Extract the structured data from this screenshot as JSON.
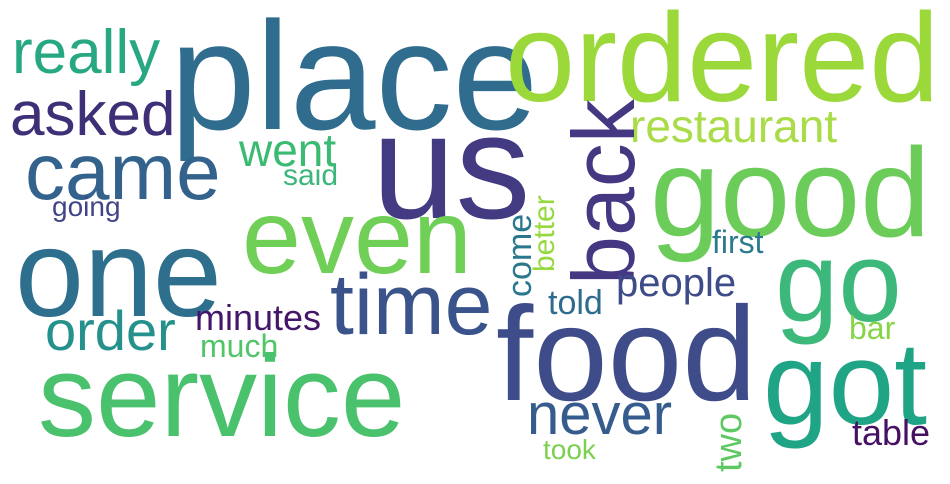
{
  "words": [
    {
      "key": "place",
      "text": "place",
      "color": "#2f6c8e"
    },
    {
      "key": "ordered",
      "text": "ordered",
      "color": "#9bd93b"
    },
    {
      "key": "really",
      "text": "really",
      "color": "#27a882"
    },
    {
      "key": "asked",
      "text": "asked",
      "color": "#3e2f77"
    },
    {
      "key": "us",
      "text": "us",
      "color": "#433b82"
    },
    {
      "key": "restaurant",
      "text": "restaurant",
      "color": "#a9dc48"
    },
    {
      "key": "came",
      "text": "came",
      "color": "#33628d"
    },
    {
      "key": "went",
      "text": "went",
      "color": "#3bba72"
    },
    {
      "key": "said",
      "text": "said",
      "color": "#3bb67b"
    },
    {
      "key": "good",
      "text": "good",
      "color": "#6ccc5a"
    },
    {
      "key": "going",
      "text": "going",
      "color": "#414487"
    },
    {
      "key": "even",
      "text": "even",
      "color": "#70cf57"
    },
    {
      "key": "one",
      "text": "one",
      "color": "#2e6f8e"
    },
    {
      "key": "back",
      "text": "back",
      "color": "#453781"
    },
    {
      "key": "better",
      "text": "better",
      "color": "#95d840"
    },
    {
      "key": "come",
      "text": "come",
      "color": "#2a788e"
    },
    {
      "key": "first",
      "text": "first",
      "color": "#2b7b8e"
    },
    {
      "key": "go",
      "text": "go",
      "color": "#3cb97a"
    },
    {
      "key": "time",
      "text": "time",
      "color": "#3a538b"
    },
    {
      "key": "people",
      "text": "people",
      "color": "#3d4c89"
    },
    {
      "key": "told",
      "text": "told",
      "color": "#2f6b8e"
    },
    {
      "key": "minutes",
      "text": "minutes",
      "color": "#44166a"
    },
    {
      "key": "order",
      "text": "order",
      "color": "#25918c"
    },
    {
      "key": "food",
      "text": "food",
      "color": "#3f4c8a"
    },
    {
      "key": "bar",
      "text": "bar",
      "color": "#86d549"
    },
    {
      "key": "much",
      "text": "much",
      "color": "#52c569"
    },
    {
      "key": "got",
      "text": "got",
      "color": "#20a486"
    },
    {
      "key": "service",
      "text": "service",
      "color": "#4ac16d"
    },
    {
      "key": "never",
      "text": "never",
      "color": "#365c8d"
    },
    {
      "key": "two",
      "text": "two",
      "color": "#5ec962"
    },
    {
      "key": "table",
      "text": "table",
      "color": "#471063"
    },
    {
      "key": "took",
      "text": "took",
      "color": "#7ad151"
    }
  ]
}
